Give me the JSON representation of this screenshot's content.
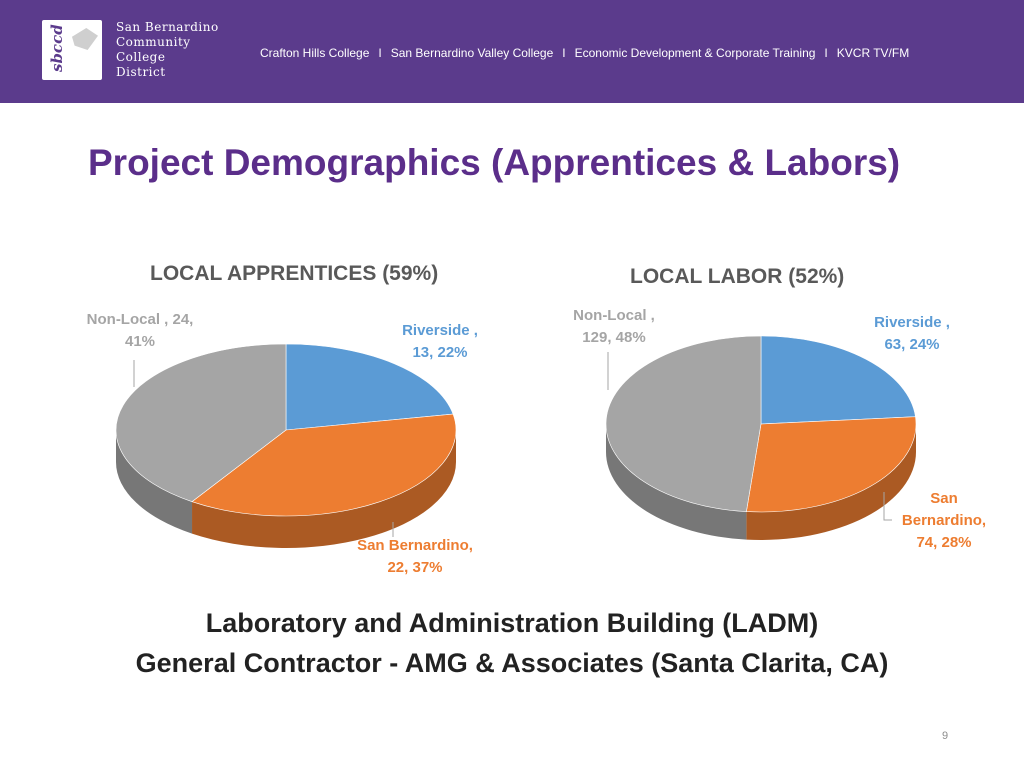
{
  "header": {
    "logo_mark": "sbccd",
    "org_lines": [
      "San Bernardino",
      "Community",
      "College",
      "District"
    ],
    "colleges": [
      "Crafton Hills College",
      "San Bernardino Valley College",
      "Economic Development & Corporate Training",
      "KVCR TV/FM"
    ],
    "separator": "I"
  },
  "slide": {
    "title": "Project Demographics (Apprentices & Labors)",
    "footer_line1": "Laboratory and Administration Building (LADM)",
    "footer_line2": "General Contractor - AMG & Associates (Santa Clarita, CA)",
    "page_number": "9"
  },
  "colors": {
    "banner": "#5b3b8c",
    "title": "#5b2e8a",
    "riverside": "#5b9bd5",
    "san_bernardino": "#ed7d31",
    "non_local": "#a5a5a5"
  },
  "chart_data": [
    {
      "type": "pie",
      "title": "LOCAL APPRENTICES (59%)",
      "labels": [
        "Riverside",
        "San Bernardino",
        "Non-Local"
      ],
      "values": [
        13,
        22,
        24
      ],
      "percents": [
        22,
        37,
        41
      ],
      "data_labels": [
        [
          "Riverside ,",
          "13, 22%"
        ],
        [
          "San Bernardino,",
          "22, 37%"
        ],
        [
          "Non-Local , 24,",
          "41%"
        ]
      ],
      "style": "3d"
    },
    {
      "type": "pie",
      "title": "LOCAL LABOR (52%)",
      "labels": [
        "Riverside",
        "San Bernardino",
        "Non-Local"
      ],
      "values": [
        63,
        74,
        129
      ],
      "percents": [
        24,
        28,
        48
      ],
      "data_labels": [
        [
          "Riverside ,",
          "63, 24%"
        ],
        [
          "San",
          "Bernardino,",
          "74, 28%"
        ],
        [
          "Non-Local ,",
          "129, 48%"
        ]
      ],
      "style": "3d"
    }
  ]
}
